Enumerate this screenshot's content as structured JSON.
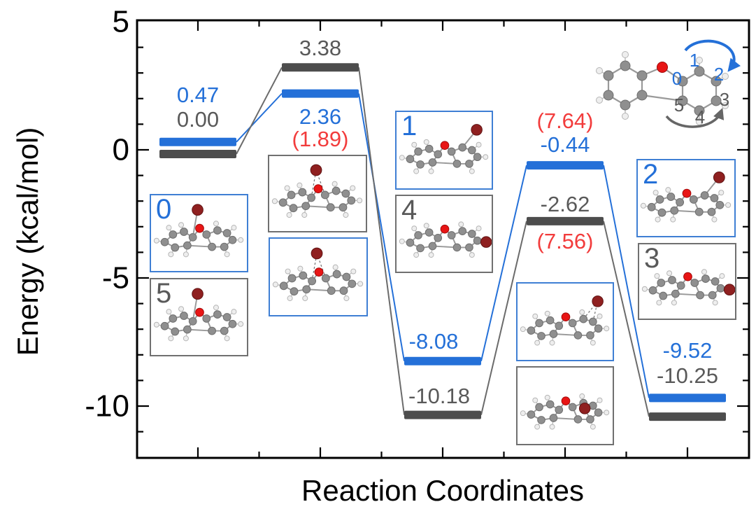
{
  "figure": {
    "kind": "reaction energy profile diagram",
    "x_axis_label": "Reaction Coordinates",
    "y_axis_label": "Energy (kcal/mol)"
  },
  "chart_data": {
    "type": "line",
    "subtype": "energy-level-diagram",
    "title": "",
    "xlabel": "Reaction Coordinates",
    "ylabel": "Energy (kcal/mol)",
    "ylim": [
      -12,
      5.1
    ],
    "yticks_major": [
      5,
      0,
      -5,
      -10
    ],
    "ytick_minor_step": 1,
    "grid": false,
    "legend": null,
    "x_stage_count": 5,
    "series": [
      {
        "name": "blue-pathway",
        "color": "#2470d8",
        "values": [
          0.47,
          2.36,
          -8.08,
          -0.44,
          -9.52
        ],
        "value_labels": [
          "0.47",
          "2.36",
          "-8.08",
          "-0.44",
          "-9.52"
        ]
      },
      {
        "name": "gray-pathway",
        "color": "#4d4d4d",
        "label_color": "#595959",
        "values": [
          0.0,
          3.38,
          -10.18,
          -2.62,
          -10.25
        ],
        "value_labels": [
          "0.00",
          "3.38",
          "-10.18",
          "-2.62",
          "-10.25"
        ]
      }
    ],
    "annotations": [
      {
        "text": "(1.89)",
        "color": "#f23c3c",
        "stage": 2,
        "attached_to": "blue-pathway",
        "position": "below-value-label"
      },
      {
        "text": "(7.64)",
        "color": "#f23c3c",
        "stage": 4,
        "attached_to": "blue-pathway",
        "position": "above-value-label"
      },
      {
        "text": "(7.56)",
        "color": "#f23c3c",
        "stage": 4,
        "attached_to": "gray-pathway",
        "position": "below-bar"
      }
    ]
  },
  "structure_boxes": [
    {
      "label": "0",
      "border": "blue",
      "molecule": {
        "br": "top",
        "dashed": false
      }
    },
    {
      "label": "5",
      "border": "gray",
      "molecule": {
        "br": "top",
        "dashed": false
      }
    },
    {
      "label": "",
      "border": "gray",
      "molecule": {
        "br": "top",
        "dashed": true
      }
    },
    {
      "label": "",
      "border": "blue",
      "molecule": {
        "br": "top",
        "dashed": true
      }
    },
    {
      "label": "1",
      "border": "blue",
      "molecule": {
        "br": "topright",
        "dashed": false
      }
    },
    {
      "label": "4",
      "border": "gray",
      "molecule": {
        "br": "right",
        "dashed": false
      }
    },
    {
      "label": "",
      "border": "blue",
      "molecule": {
        "br": "topright",
        "dashed": true
      }
    },
    {
      "label": "",
      "border": "gray",
      "molecule": {
        "br": "bridge",
        "dashed": true
      }
    },
    {
      "label": "2",
      "border": "blue",
      "molecule": {
        "br": "topright",
        "dashed": false
      }
    },
    {
      "label": "3",
      "border": "gray",
      "molecule": {
        "br": "right",
        "dashed": false
      }
    }
  ],
  "inset": {
    "description": "dibenzofuran ring position key",
    "atom_labels": [
      {
        "text": "0",
        "color": "blue"
      },
      {
        "text": "1",
        "color": "blue"
      },
      {
        "text": "2",
        "color": "blue"
      },
      {
        "text": "3",
        "color": "gray"
      },
      {
        "text": "4",
        "color": "gray"
      },
      {
        "text": "5",
        "color": "gray"
      }
    ],
    "arrows": [
      {
        "color": "blue",
        "direction": "clockwise-over-top"
      },
      {
        "color": "gray",
        "direction": "counterclockwise-under-bottom"
      }
    ]
  },
  "colors": {
    "blue": "#2470d8",
    "gray_label": "#595959",
    "gray_bar": "#4d4d4d",
    "gray_line": "#6b6b6b",
    "red": "#f23c3c",
    "black": "#000000",
    "oxygen": "#e81515",
    "bromine": "#8f2020",
    "carbon": "#8f8f8f",
    "hydrogen": "#eeeeee"
  }
}
